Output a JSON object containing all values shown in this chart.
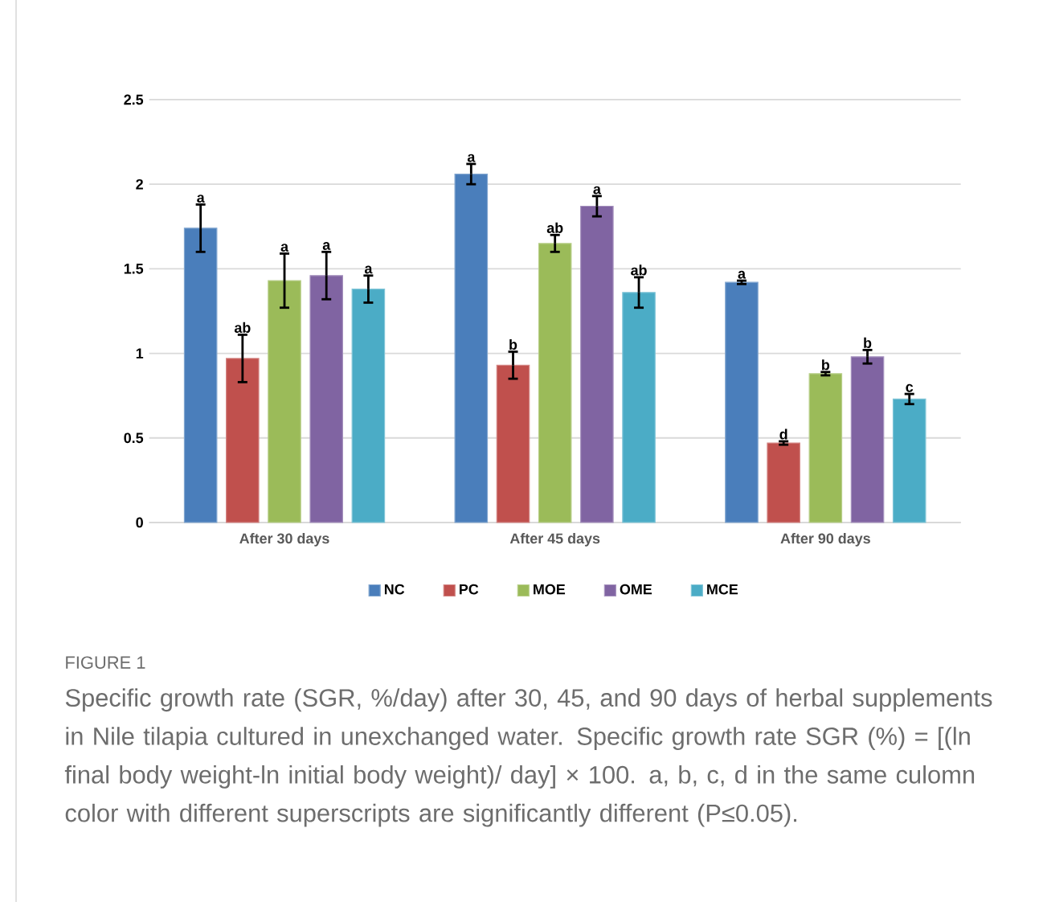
{
  "chart_data": {
    "type": "bar",
    "categories": [
      "After 30 days",
      "After 45 days",
      "After 90 days"
    ],
    "series": [
      {
        "name": "NC",
        "color": "#4a7ebb",
        "values": [
          1.74,
          2.06,
          1.42
        ],
        "errors": [
          0.14,
          0.06,
          0.01
        ],
        "value_labels": [
          "a",
          "a",
          "a"
        ]
      },
      {
        "name": "PC",
        "color": "#c0504d",
        "values": [
          0.97,
          0.93,
          0.47
        ],
        "errors": [
          0.14,
          0.08,
          0.01
        ],
        "value_labels": [
          "ab",
          "b",
          "d"
        ]
      },
      {
        "name": "MOE",
        "color": "#9bbb59",
        "values": [
          1.43,
          1.65,
          0.88
        ],
        "errors": [
          0.16,
          0.05,
          0.01
        ],
        "value_labels": [
          "a",
          "ab",
          "b"
        ]
      },
      {
        "name": "OME",
        "color": "#8064a2",
        "values": [
          1.46,
          1.87,
          0.98
        ],
        "errors": [
          0.14,
          0.06,
          0.04
        ],
        "value_labels": [
          "a",
          "a",
          "b"
        ]
      },
      {
        "name": "MCE",
        "color": "#4bacc6",
        "values": [
          1.38,
          1.36,
          0.73
        ],
        "errors": [
          0.08,
          0.09,
          0.03
        ],
        "value_labels": [
          "a",
          "ab",
          "c"
        ]
      }
    ],
    "ylim": [
      0,
      2.5
    ],
    "yticks": [
      0,
      0.5,
      1,
      1.5,
      2,
      2.5
    ],
    "grid": "y",
    "legend": "bottom",
    "annotations": [
      "FIGURE 1",
      "Specific growth rate (SGR, %/day) after 30, 45, and 90 days of herbal supplements in Nile tilapia cultured in unexchanged water. Specific growth rate SGR (%) = [(ln final body weight-ln initial body weight)/ day] × 100. a, b, c, d in the same culomn color with different superscripts are significantly different (P≤0.05)."
    ]
  }
}
